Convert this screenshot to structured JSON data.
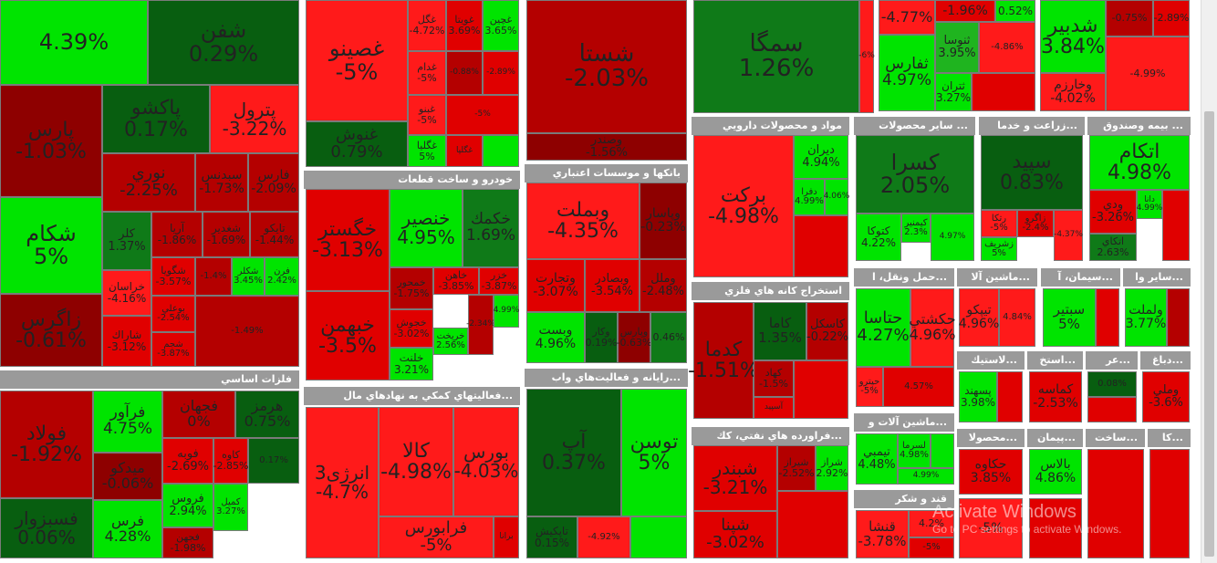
{
  "sections": {
    "fellezat": "فلزات اساسي",
    "khodro": "خودرو و ساخت قطعات",
    "bank": "بانكها و موسسات اعتباري",
    "mali": "...فعاليتهاي كمكي به نهادهاي مال",
    "rayane": "...رايانه و فعاليت‌هاي واب",
    "darooi": "مواد و محصولات دارويي",
    "mahsoolat": "... ساير محصولات",
    "zeraat": "...زراعت و خدما",
    "bime": "... بيمه وصندوق",
    "felezi": "استخراج كانه هاي فلزي",
    "naft": "...فراورده هاي نفتي، كك",
    "haml": "...حمل ونقل، ا",
    "mashin": "...ماشين آلا",
    "siman": "...سيمان، آ",
    "sayer": "...ساير وا",
    "mashinAlat": "...ماشين آلات و",
    "ghand": "قند و شكر",
    "lastik": "...لاستيك",
    "estekh": "...استخ",
    "ayr": "...عر",
    "dabagh": "...دباغ",
    "mahsoolat2": "...محصولا",
    "peyman": "...پيمان",
    "sakht": "...ساخت",
    "ka": "...كا"
  },
  "tiles": [
    {
      "id": "t01",
      "n": "",
      "p": "4.39%",
      "c": "g3"
    },
    {
      "id": "t02",
      "n": "شفن",
      "p": "0.29%",
      "c": "g0"
    },
    {
      "id": "t03",
      "n": "پارس",
      "p": "-1.03%",
      "c": "r0"
    },
    {
      "id": "t04",
      "n": "پاكشو",
      "p": "0.17%",
      "c": "g0"
    },
    {
      "id": "t05",
      "n": "پترول",
      "p": "-3.22%",
      "c": "r3"
    },
    {
      "id": "t06",
      "n": "نوري",
      "p": "-2.25%",
      "c": "r1"
    },
    {
      "id": "t07",
      "n": "سبدنس",
      "p": "-1.73%",
      "c": "r1"
    },
    {
      "id": "t08",
      "n": "فارس",
      "p": "-2.09%",
      "c": "r1"
    },
    {
      "id": "t09",
      "n": "شكام",
      "p": "5%",
      "c": "g3"
    },
    {
      "id": "t10",
      "n": "كلر",
      "p": "1.37%",
      "c": "g1"
    },
    {
      "id": "t11",
      "n": "آريا",
      "p": "-1.86%",
      "c": "r1"
    },
    {
      "id": "t12",
      "n": "شغدير",
      "p": "-1.69%",
      "c": "r1"
    },
    {
      "id": "t13",
      "n": "تايكو",
      "p": "-1.44%",
      "c": "r1"
    },
    {
      "id": "t14",
      "n": "خراسان",
      "p": "-4.16%",
      "c": "r3"
    },
    {
      "id": "t15",
      "n": "شگويا",
      "p": "-3.57%",
      "c": "r2"
    },
    {
      "id": "t16",
      "n": "",
      "p": "-1.4%",
      "c": "r1"
    },
    {
      "id": "t17",
      "n": "شكلر",
      "p": "3.45%",
      "c": "g3"
    },
    {
      "id": "t18",
      "n": "فرن",
      "p": "2.42%",
      "c": "g3"
    },
    {
      "id": "t19",
      "n": "زاگرس",
      "p": "-0.61%",
      "c": "r0"
    },
    {
      "id": "t20",
      "n": "شاراك",
      "p": "-3.12%",
      "c": "r2"
    },
    {
      "id": "t21",
      "n": "بوعلي",
      "p": "-2.54%",
      "c": "r2"
    },
    {
      "id": "t22",
      "n": "شجم",
      "p": "-3.87%",
      "c": "r2"
    },
    {
      "id": "t23",
      "n": "",
      "p": "-1.49%",
      "c": "r1"
    },
    {
      "id": "t24",
      "n": "غصينو",
      "p": "-5%",
      "c": "r3"
    },
    {
      "id": "t25",
      "n": "غگل",
      "p": "-4.72%",
      "c": "r3"
    },
    {
      "id": "t26",
      "n": "غويتا",
      "p": "3.69%",
      "c": "r2"
    },
    {
      "id": "t27",
      "n": "غچين",
      "p": "3.65%",
      "c": "g3"
    },
    {
      "id": "t28",
      "n": "غدام",
      "p": "-5%",
      "c": "r3"
    },
    {
      "id": "t29",
      "n": "",
      "p": "-0.88%",
      "c": "r1"
    },
    {
      "id": "t30",
      "n": "",
      "p": "-2.89%",
      "c": "r2"
    },
    {
      "id": "t31",
      "n": "غبنو",
      "p": "-5%",
      "c": "r3"
    },
    {
      "id": "t32",
      "n": "",
      "p": "-5%",
      "c": "r2"
    },
    {
      "id": "t33",
      "n": "غنوش",
      "p": "0.79%",
      "c": "g0"
    },
    {
      "id": "t34",
      "n": "غگليا",
      "p": "5%",
      "c": "g3"
    },
    {
      "id": "t35",
      "n": "غگلپا",
      "p": "",
      "c": "r2"
    },
    {
      "id": "t36",
      "n": "",
      "p": "",
      "c": "g3"
    },
    {
      "id": "t37",
      "n": "شستا",
      "p": "-2.03%",
      "c": "r1"
    },
    {
      "id": "t38",
      "n": "وصندر",
      "p": "-1.56%",
      "c": "r0"
    },
    {
      "id": "t39",
      "n": "سمگا",
      "p": "1.26%",
      "c": "g1"
    },
    {
      "id": "t40",
      "n": "",
      "p": "-6%",
      "c": "r3"
    },
    {
      "id": "t41",
      "n": "",
      "p": "-4.77%",
      "c": "r3"
    },
    {
      "id": "t42",
      "n": "",
      "p": "-1.96%",
      "c": "r2"
    },
    {
      "id": "t43",
      "n": "",
      "p": "0.52%",
      "c": "g3"
    },
    {
      "id": "t44",
      "n": "ثنوسا",
      "p": "3.95%",
      "c": "g2"
    },
    {
      "id": "t45",
      "n": "ثفارس",
      "p": "4.97%",
      "c": "g3"
    },
    {
      "id": "t46",
      "n": "ثتران",
      "p": "3.27%",
      "c": "g3"
    },
    {
      "id": "t47",
      "n": "",
      "p": "-4.86%",
      "c": "r3"
    },
    {
      "id": "t48",
      "n": "",
      "p": "",
      "c": "r2"
    },
    {
      "id": "t49",
      "n": "شدبير",
      "p": "3.84%",
      "c": "g3"
    },
    {
      "id": "t50",
      "n": "وخارزم",
      "p": "-4.02%",
      "c": "r3"
    },
    {
      "id": "t51",
      "n": "",
      "p": "-0.75%",
      "c": "r1"
    },
    {
      "id": "t52",
      "n": "",
      "p": "-2.89%",
      "c": "r2"
    },
    {
      "id": "t53",
      "n": "",
      "p": "-4.99%",
      "c": "r3"
    },
    {
      "id": "t54",
      "n": "خگستر",
      "p": "-3.13%",
      "c": "r2"
    },
    {
      "id": "t55",
      "n": "خنصير",
      "p": "4.95%",
      "c": "g3"
    },
    {
      "id": "t56",
      "n": "خكمك",
      "p": "1.69%",
      "c": "g1"
    },
    {
      "id": "t57",
      "n": "خبهمن",
      "p": "-3.5%",
      "c": "r2"
    },
    {
      "id": "t58",
      "n": "خمحور",
      "p": "-1.75%",
      "c": "r1"
    },
    {
      "id": "t59",
      "n": "خاهن",
      "p": "-3.85%",
      "c": "r2"
    },
    {
      "id": "t60",
      "n": "خزر",
      "p": "-3.87%",
      "c": "r2"
    },
    {
      "id": "t61",
      "n": "خجوش",
      "p": "-3.02%",
      "c": "r2"
    },
    {
      "id": "t62",
      "n": "خريخت",
      "p": "2.56%",
      "c": "g3"
    },
    {
      "id": "t63",
      "n": "خلنت",
      "p": "3.21%",
      "c": "g3"
    },
    {
      "id": "t64",
      "n": "",
      "p": "4.99%",
      "c": "g3"
    },
    {
      "id": "t65",
      "n": "",
      "p": "-2.34%",
      "c": "r2"
    },
    {
      "id": "t66",
      "n": "وبملت",
      "p": "-4.35%",
      "c": "r3"
    },
    {
      "id": "t67",
      "n": "وپاسار",
      "p": "-0.23%",
      "c": "r0"
    },
    {
      "id": "t68",
      "n": "وتجارت",
      "p": "-3.07%",
      "c": "r2"
    },
    {
      "id": "t69",
      "n": "وبصادر",
      "p": "-3.54%",
      "c": "r2"
    },
    {
      "id": "t70",
      "n": "وملل",
      "p": "-2.48%",
      "c": "r1"
    },
    {
      "id": "t71",
      "n": "وبست",
      "p": "4.96%",
      "c": "g3"
    },
    {
      "id": "t72",
      "n": "وكار",
      "p": "0.19%",
      "c": "g0"
    },
    {
      "id": "t73",
      "n": "وپارس",
      "p": "-0.63%",
      "c": "r0"
    },
    {
      "id": "t74",
      "n": "",
      "p": "0.46%",
      "c": "g1"
    },
    {
      "id": "t75",
      "n": "بركت",
      "p": "-4.98%",
      "c": "r3"
    },
    {
      "id": "t76",
      "n": "ديران",
      "p": "4.94%",
      "c": "g3"
    },
    {
      "id": "t77",
      "n": "دفرا",
      "p": "4.99%",
      "c": "g3"
    },
    {
      "id": "t78",
      "n": "",
      "p": "4.06%",
      "c": "g3"
    },
    {
      "id": "t79",
      "n": "",
      "p": "",
      "c": "r2"
    },
    {
      "id": "t80",
      "n": "كسرا",
      "p": "2.05%",
      "c": "g1"
    },
    {
      "id": "t81",
      "n": "كتوكا",
      "p": "4.22%",
      "c": "g3"
    },
    {
      "id": "t82",
      "n": "كيمنير",
      "p": "2.3%",
      "c": "g3"
    },
    {
      "id": "t83",
      "n": "",
      "p": "4.97%",
      "c": "g3"
    },
    {
      "id": "t84",
      "n": "سپيد",
      "p": "0.83%",
      "c": "g0"
    },
    {
      "id": "t85",
      "n": "رتكا",
      "p": "-5%",
      "c": "r3"
    },
    {
      "id": "t86",
      "n": "زاگرو",
      "p": "-2.4%",
      "c": "r2"
    },
    {
      "id": "t87",
      "n": "زشريف",
      "p": "5%",
      "c": "g3"
    },
    {
      "id": "t88",
      "n": "",
      "p": "-4.37%",
      "c": "r3"
    },
    {
      "id": "t89",
      "n": "اتكام",
      "p": "4.98%",
      "c": "g3"
    },
    {
      "id": "t90",
      "n": "ودي",
      "p": "-3.26%",
      "c": "r2"
    },
    {
      "id": "t91",
      "n": "دانا",
      "p": "4.99%",
      "c": "g3"
    },
    {
      "id": "t92",
      "n": "اتكاي",
      "p": "2.63%",
      "c": "g1"
    },
    {
      "id": "t93",
      "n": "",
      "p": "",
      "c": "r2"
    },
    {
      "id": "t94",
      "n": "كدما",
      "p": "-1.51%",
      "c": "r1"
    },
    {
      "id": "t95",
      "n": "كاما",
      "p": "1.35%",
      "c": "g0"
    },
    {
      "id": "t96",
      "n": "كاسكل",
      "p": "-0.22%",
      "c": "r1"
    },
    {
      "id": "t97",
      "n": "كهاد",
      "p": "-1.5%",
      "c": "r1"
    },
    {
      "id": "t98",
      "n": "",
      "p": "",
      "c": "r2"
    },
    {
      "id": "t99",
      "n": "آسپيد",
      "p": "",
      "c": "r2"
    },
    {
      "id": "t100",
      "n": "برانا",
      "p": "",
      "c": "r2"
    },
    {
      "id": "t101",
      "n": "بورس",
      "p": "-4.03%",
      "c": "r3"
    },
    {
      "id": "t102",
      "n": "كالا",
      "p": "-4.98%",
      "c": "r3"
    },
    {
      "id": "t103",
      "n": "انرژی3",
      "p": "-4.7%",
      "c": "r3"
    },
    {
      "id": "t104",
      "n": "فرابورس",
      "p": "-5%",
      "c": "r3"
    },
    {
      "id": "t105",
      "n": "توسن",
      "p": "5%",
      "c": "g3"
    },
    {
      "id": "t106",
      "n": "آپ",
      "p": "0.37%",
      "c": "g0"
    },
    {
      "id": "t107",
      "n": "تاپكيش",
      "p": "0.15%",
      "c": "g0"
    },
    {
      "id": "t108",
      "n": "",
      "p": "-4.92%",
      "c": "r3"
    },
    {
      "id": "t109",
      "n": "",
      "p": "",
      "c": "g3"
    },
    {
      "id": "t110",
      "n": "شبندر",
      "p": "-3.21%",
      "c": "r2"
    },
    {
      "id": "t111",
      "n": "شپنا",
      "p": "-3.02%",
      "c": "r2"
    },
    {
      "id": "t112",
      "n": "شيراز",
      "p": "-2.52%",
      "c": "r1"
    },
    {
      "id": "t113",
      "n": "شراز",
      "p": "2.92%",
      "c": "g3"
    },
    {
      "id": "t114",
      "n": "",
      "p": "",
      "c": "r2"
    },
    {
      "id": "t115",
      "n": "حتاسا",
      "p": "4.27%",
      "c": "g3"
    },
    {
      "id": "t116",
      "n": "حكشتي",
      "p": "4.96%",
      "c": "r3"
    },
    {
      "id": "t117",
      "n": "حپترو",
      "p": "-5%",
      "c": "r3"
    },
    {
      "id": "t118",
      "n": "",
      "p": "4.57%",
      "c": "r2"
    },
    {
      "id": "t119",
      "n": "تيپكو",
      "p": "4.96%",
      "c": "r3"
    },
    {
      "id": "t120",
      "n": "",
      "p": "4.84%",
      "c": "r3"
    },
    {
      "id": "t121",
      "n": "سبتير",
      "p": "5%",
      "c": "g3"
    },
    {
      "id": "t122",
      "n": "",
      "p": "",
      "c": "r2"
    },
    {
      "id": "t123",
      "n": "ولملت",
      "p": "3.77%",
      "c": "g3"
    },
    {
      "id": "t124",
      "n": "",
      "p": "",
      "c": "r1"
    },
    {
      "id": "t125",
      "n": "تيمبي",
      "p": "4.48%",
      "c": "g3"
    },
    {
      "id": "t126",
      "n": "لسرما",
      "p": "4.98%",
      "c": "g3"
    },
    {
      "id": "t127",
      "n": "",
      "p": "4.99%",
      "c": "g3"
    },
    {
      "id": "t128",
      "n": "قنشا",
      "p": "-3.78%",
      "c": "r3"
    },
    {
      "id": "t129",
      "n": "",
      "p": "4.2%",
      "c": "r3"
    },
    {
      "id": "t130",
      "n": "",
      "p": "-5%",
      "c": "r2"
    },
    {
      "id": "t131",
      "n": "پسهند",
      "p": "3.98%",
      "c": "g3"
    },
    {
      "id": "t132",
      "n": "",
      "p": "",
      "c": "r2"
    },
    {
      "id": "t133",
      "n": "كماسه",
      "p": "-2.53%",
      "c": "r2"
    },
    {
      "id": "t134",
      "n": "",
      "p": "0.08%",
      "c": "g0"
    },
    {
      "id": "t135",
      "n": "",
      "p": "",
      "c": "r2"
    },
    {
      "id": "t136",
      "n": "وملي",
      "p": "-3.6%",
      "c": "r2"
    },
    {
      "id": "t137",
      "n": "حكاوه",
      "p": "3.85%",
      "c": "r2"
    },
    {
      "id": "t138",
      "n": "بالاس",
      "p": "4.86%",
      "c": "g3"
    },
    {
      "id": "t139",
      "n": "",
      "p": "",
      "c": "r2"
    },
    {
      "id": "t140",
      "n": "",
      "p": "-5%",
      "c": "r3"
    },
    {
      "id": "t141",
      "n": "",
      "p": "",
      "c": "r2"
    },
    {
      "id": "t142",
      "n": "",
      "p": "",
      "c": "r2"
    },
    {
      "id": "t143",
      "n": "فولاد",
      "p": "-1.92%",
      "c": "r1"
    },
    {
      "id": "t144",
      "n": "فرآور",
      "p": "4.75%",
      "c": "g3"
    },
    {
      "id": "t145",
      "n": "فجهان",
      "p": "0%",
      "c": "r1"
    },
    {
      "id": "t146",
      "n": "هرمز",
      "p": "0.75%",
      "c": "g0"
    },
    {
      "id": "t147",
      "n": "فوبه",
      "p": "-2.69%",
      "c": "r2"
    },
    {
      "id": "t148",
      "n": "كاوه",
      "p": "-2.85%",
      "c": "r2"
    },
    {
      "id": "t149",
      "n": "ميدكو",
      "p": "-0.06%",
      "c": "r0"
    },
    {
      "id": "t150",
      "n": "فروس",
      "p": "2.94%",
      "c": "g3"
    },
    {
      "id": "t151",
      "n": "كميل",
      "p": "3.27%",
      "c": "g3"
    },
    {
      "id": "t152",
      "n": "فسبزوار",
      "p": "0.06%",
      "c": "g0"
    },
    {
      "id": "t153",
      "n": "فرس",
      "p": "4.28%",
      "c": "g3"
    },
    {
      "id": "t154",
      "n": "فجهن",
      "p": "-1.98%",
      "c": "r1"
    },
    {
      "id": "t155",
      "n": "",
      "p": "",
      "c": "r2"
    },
    {
      "id": "t156",
      "n": "",
      "p": "0.17%",
      "c": "g0"
    }
  ],
  "watermark": {
    "line1": "Activate Windows",
    "line2": "Go to PC settings to activate Windows."
  }
}
